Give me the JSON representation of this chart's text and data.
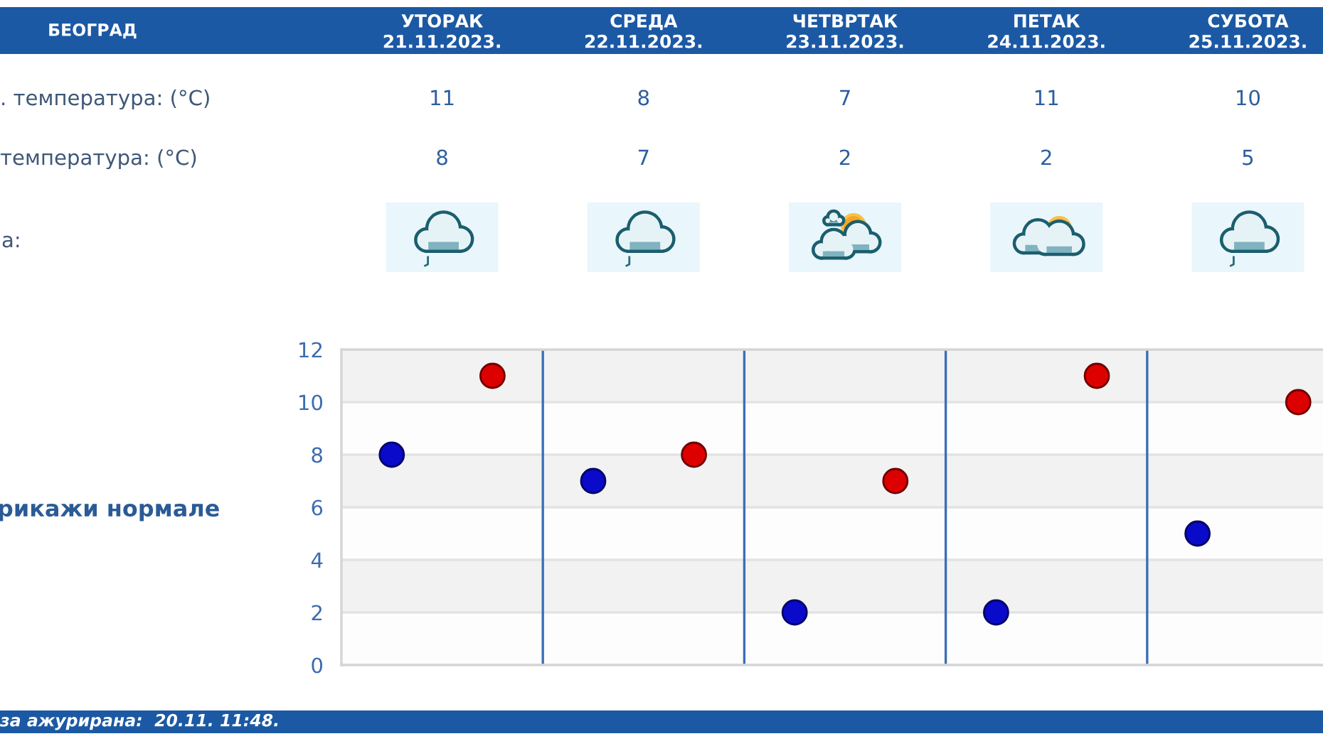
{
  "chart_data": {
    "type": "scatter",
    "title": "БЕОГРАД",
    "categories": [
      null,
      null,
      null,
      null,
      null
    ],
    "series": [
      {
        "color": "#dd0000",
        "values": [
          11,
          8,
          7,
          11,
          10
        ]
      },
      {
        "color": "#0a0acb",
        "values": [
          8,
          7,
          2,
          2,
          5
        ]
      }
    ],
    "ylim": [
      0,
      12
    ],
    "yticks": [
      0,
      2,
      4,
      6,
      8,
      10,
      12
    ],
    "grid": "y",
    "marker": "circle",
    "data_labels": true,
    "annotations": [
      "УТОРАК\n21.11.2023.",
      "СРЕДА\n22.11.2023.",
      "ЧЕТВРТАК\n23.11.2023.",
      "ПЕТАК\n24.11.2023.",
      "СУБОТА\n25.11.2023.",
      ". температура: (°C)",
      "температура: (°C)",
      "а:",
      "рикажи нормале",
      "за ажурирана:  20.11. 11:48."
    ]
  }
}
